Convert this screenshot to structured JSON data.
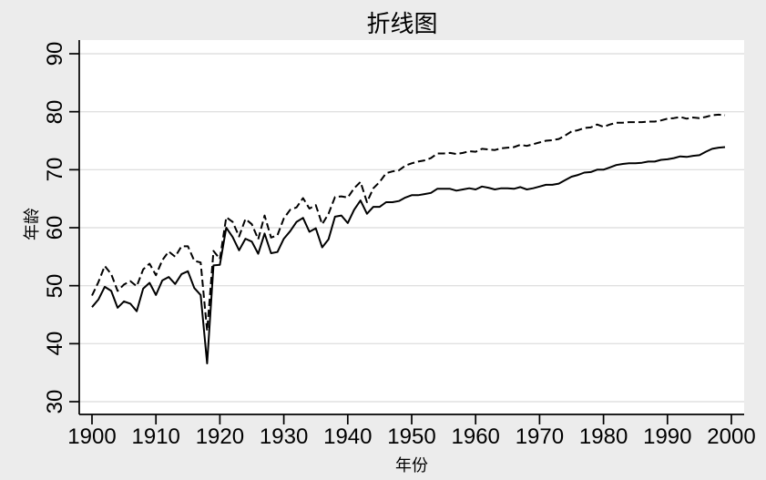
{
  "chart_data": {
    "type": "line",
    "title": "折线图",
    "xlabel": "年份",
    "ylabel": "年龄",
    "xlim": [
      1900,
      2000
    ],
    "ylim": [
      30,
      90
    ],
    "xticks": [
      1900,
      1910,
      1920,
      1930,
      1940,
      1950,
      1960,
      1970,
      1980,
      1990,
      2000
    ],
    "yticks": [
      30,
      40,
      50,
      60,
      70,
      80,
      90
    ],
    "grid": "horizontal",
    "legend": "none",
    "x": [
      1900,
      1901,
      1902,
      1903,
      1904,
      1905,
      1906,
      1907,
      1908,
      1909,
      1910,
      1911,
      1912,
      1913,
      1914,
      1915,
      1916,
      1917,
      1918,
      1919,
      1920,
      1921,
      1922,
      1923,
      1924,
      1925,
      1926,
      1927,
      1928,
      1929,
      1930,
      1931,
      1932,
      1933,
      1934,
      1935,
      1936,
      1937,
      1938,
      1939,
      1940,
      1941,
      1942,
      1943,
      1944,
      1945,
      1946,
      1947,
      1948,
      1949,
      1950,
      1951,
      1952,
      1953,
      1954,
      1955,
      1956,
      1957,
      1958,
      1959,
      1960,
      1961,
      1962,
      1963,
      1964,
      1965,
      1966,
      1967,
      1968,
      1969,
      1970,
      1971,
      1972,
      1973,
      1974,
      1975,
      1976,
      1977,
      1978,
      1979,
      1980,
      1981,
      1982,
      1983,
      1984,
      1985,
      1986,
      1987,
      1988,
      1989,
      1990,
      1991,
      1992,
      1993,
      1994,
      1995,
      1996,
      1997,
      1998,
      1999
    ],
    "series": [
      {
        "name": "solid-line",
        "line_style": "solid",
        "color": "#000000",
        "values": [
          46.3,
          47.6,
          49.8,
          49.1,
          46.2,
          47.3,
          46.9,
          45.6,
          49.5,
          50.5,
          48.4,
          50.9,
          51.5,
          50.3,
          52.0,
          52.5,
          49.6,
          48.4,
          36.6,
          53.5,
          53.6,
          60.0,
          58.4,
          56.1,
          58.1,
          57.6,
          55.5,
          59.0,
          55.6,
          55.8,
          58.1,
          59.4,
          61.0,
          61.7,
          59.3,
          59.9,
          56.6,
          58.0,
          61.9,
          62.1,
          60.8,
          63.1,
          64.7,
          62.4,
          63.6,
          63.6,
          64.4,
          64.4,
          64.6,
          65.2,
          65.6,
          65.6,
          65.8,
          66.0,
          66.7,
          66.7,
          66.7,
          66.4,
          66.6,
          66.8,
          66.6,
          67.1,
          66.9,
          66.6,
          66.8,
          66.8,
          66.7,
          67.0,
          66.6,
          66.8,
          67.1,
          67.4,
          67.4,
          67.6,
          68.2,
          68.8,
          69.1,
          69.5,
          69.6,
          70.0,
          70.0,
          70.4,
          70.8,
          71.0,
          71.1,
          71.1,
          71.2,
          71.4,
          71.4,
          71.7,
          71.8,
          72.0,
          72.3,
          72.2,
          72.4,
          72.5,
          73.1,
          73.6,
          73.8,
          73.9
        ]
      },
      {
        "name": "dashed-line",
        "line_style": "dashed",
        "color": "#000000",
        "values": [
          48.3,
          50.6,
          53.4,
          52.0,
          49.1,
          50.2,
          50.8,
          49.9,
          52.8,
          53.8,
          51.8,
          54.4,
          55.9,
          55.0,
          56.8,
          56.8,
          54.3,
          54.0,
          42.2,
          56.0,
          54.6,
          61.8,
          61.0,
          58.5,
          61.5,
          60.6,
          58.0,
          62.1,
          58.3,
          58.7,
          61.6,
          63.1,
          63.5,
          65.1,
          63.3,
          63.9,
          60.6,
          62.4,
          65.3,
          65.4,
          65.2,
          66.8,
          67.9,
          64.4,
          66.8,
          67.9,
          69.4,
          69.7,
          69.9,
          70.7,
          71.1,
          71.4,
          71.6,
          72.0,
          72.8,
          72.8,
          72.9,
          72.7,
          72.9,
          73.2,
          73.1,
          73.6,
          73.5,
          73.4,
          73.7,
          73.8,
          73.9,
          74.3,
          74.1,
          74.4,
          74.7,
          75.0,
          75.1,
          75.3,
          75.9,
          76.6,
          76.8,
          77.2,
          77.3,
          77.8,
          77.4,
          77.8,
          78.1,
          78.1,
          78.2,
          78.2,
          78.2,
          78.3,
          78.3,
          78.5,
          78.8,
          78.9,
          79.1,
          78.8,
          79.0,
          78.9,
          79.1,
          79.4,
          79.5,
          79.4
        ]
      }
    ],
    "colors": {
      "figure_bg": "#ececec",
      "plot_bg": "#ffffff",
      "grid": "#e0e0e0",
      "axis": "#000000",
      "text": "#000000"
    }
  }
}
